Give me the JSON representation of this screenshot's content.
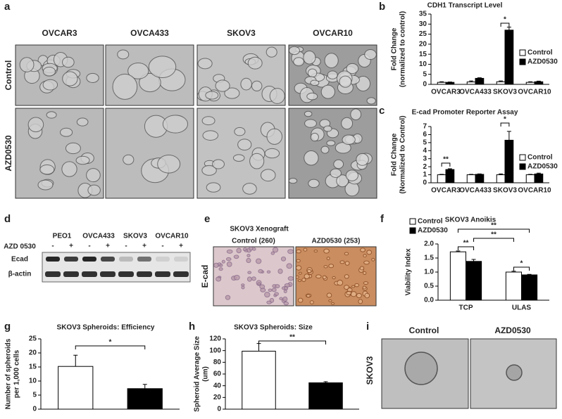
{
  "panel_labels": [
    "a",
    "b",
    "c",
    "d",
    "e",
    "f",
    "g",
    "h",
    "i"
  ],
  "micrographs": {
    "columns": [
      "OVCAR3",
      "OVCA433",
      "SKOV3",
      "OVCAR10"
    ],
    "rows": [
      "Control",
      "AZD0530"
    ]
  },
  "western_blot": {
    "lanes": [
      "PEO1",
      "OVCA433",
      "SKOV3",
      "OVCAR10"
    ],
    "treatment_label": "AZD 0530",
    "treatment_signs": [
      "-",
      "+",
      "-",
      "+",
      "-",
      "+",
      "-",
      "+"
    ],
    "bands": [
      "Ecad",
      "β-actin"
    ]
  },
  "xenograft": {
    "title": "SKOV3 Xenograft",
    "columns": [
      "Control (260)",
      "AZD0530 (253)"
    ],
    "row_label": "E-cad"
  },
  "spheroid_images": {
    "columns": [
      "Control",
      "AZD0530"
    ],
    "row_label": "SKOV3"
  },
  "chart_data": [
    {
      "type": "bar",
      "title": "CDH1 Transcript Level",
      "ylabel": [
        "Fold Change",
        "(normalized to control)"
      ],
      "categories": [
        "OVCAR3",
        "OVCA433",
        "SKOV3",
        "OVCAR10"
      ],
      "series": [
        {
          "name": "Control",
          "color": "#ffffff",
          "values": [
            1,
            1.2,
            1.3,
            1.0
          ],
          "errors": [
            0.3,
            0.5,
            0.4,
            0.3
          ]
        },
        {
          "name": "AZD0530",
          "color": "#000000",
          "values": [
            1,
            3,
            27,
            1.3
          ],
          "errors": [
            0.2,
            0.3,
            1.5,
            0.3
          ]
        }
      ],
      "ylim": [
        0,
        35
      ],
      "yticks": [
        0,
        5,
        10,
        15,
        20,
        25,
        30,
        35
      ],
      "legend": "right",
      "annotations": [
        "*"
      ]
    },
    {
      "type": "bar",
      "title": "E-cad Promoter Reporter Assay",
      "ylabel": [
        "Fold Change",
        "(Normalized to Control)"
      ],
      "categories": [
        "OVCAR3",
        "OVCA433",
        "SKOV3",
        "OVCAR10"
      ],
      "series": [
        {
          "name": "Control",
          "color": "#ffffff",
          "values": [
            1,
            1,
            1,
            1
          ],
          "errors": [
            0.05,
            0.05,
            0.1,
            0.05
          ]
        },
        {
          "name": "AZD0530",
          "color": "#000000",
          "values": [
            1.65,
            1.05,
            5.3,
            1.1
          ],
          "errors": [
            0.1,
            0.05,
            1.1,
            0.1
          ]
        }
      ],
      "ylim": [
        0,
        7
      ],
      "yticks": [
        0,
        1,
        2,
        3,
        4,
        5,
        6,
        7
      ],
      "legend": "right",
      "annotations": [
        "**",
        "*"
      ]
    },
    {
      "type": "bar",
      "title": "SKOV3 Anoikis",
      "ylabel": [
        "Viability Index"
      ],
      "categories": [
        "TCP",
        "ULAS"
      ],
      "series": [
        {
          "name": "Control",
          "color": "#ffffff",
          "values": [
            1.72,
            1.0
          ],
          "errors": [
            0.03,
            0.03
          ]
        },
        {
          "name": "AZD0530",
          "color": "#000000",
          "values": [
            1.38,
            0.9
          ],
          "errors": [
            0.07,
            0.02
          ]
        }
      ],
      "ylim": [
        0,
        2
      ],
      "yticks": [
        {
          "value": 0,
          "label": "0.0"
        },
        0.5,
        {
          "value": 1,
          "label": "1.0"
        },
        1.5,
        {
          "value": 2,
          "label": "2.0"
        }
      ],
      "legend": "top-left",
      "annotations": [
        "**",
        "**",
        "**",
        "*"
      ]
    },
    {
      "type": "bar",
      "title": "SKOV3 Spheroids: Efficiency",
      "ylabel": [
        "Number of spheroids",
        "per 1,000 cells"
      ],
      "categories": [
        null,
        null
      ],
      "values": [
        15.2,
        7.3
      ],
      "errors": [
        4,
        1.5
      ],
      "colors": [
        "#ffffff",
        "#000000"
      ],
      "ylim": [
        0,
        25
      ],
      "yticks": [
        0,
        5,
        10,
        15,
        20,
        25
      ],
      "annotations": [
        "*"
      ]
    },
    {
      "type": "bar",
      "title": "SKOV3 Spheroids: Size",
      "ylabel": [
        "Spheroid Average Size",
        "(um)"
      ],
      "categories": [
        null,
        null
      ],
      "values": [
        99,
        45
      ],
      "errors": [
        13,
        2
      ],
      "colors": [
        "#ffffff",
        "#000000"
      ],
      "ylim": [
        0,
        120
      ],
      "yticks": [
        0,
        20,
        40,
        60,
        80,
        100,
        120
      ],
      "annotations": [
        "**"
      ]
    }
  ]
}
